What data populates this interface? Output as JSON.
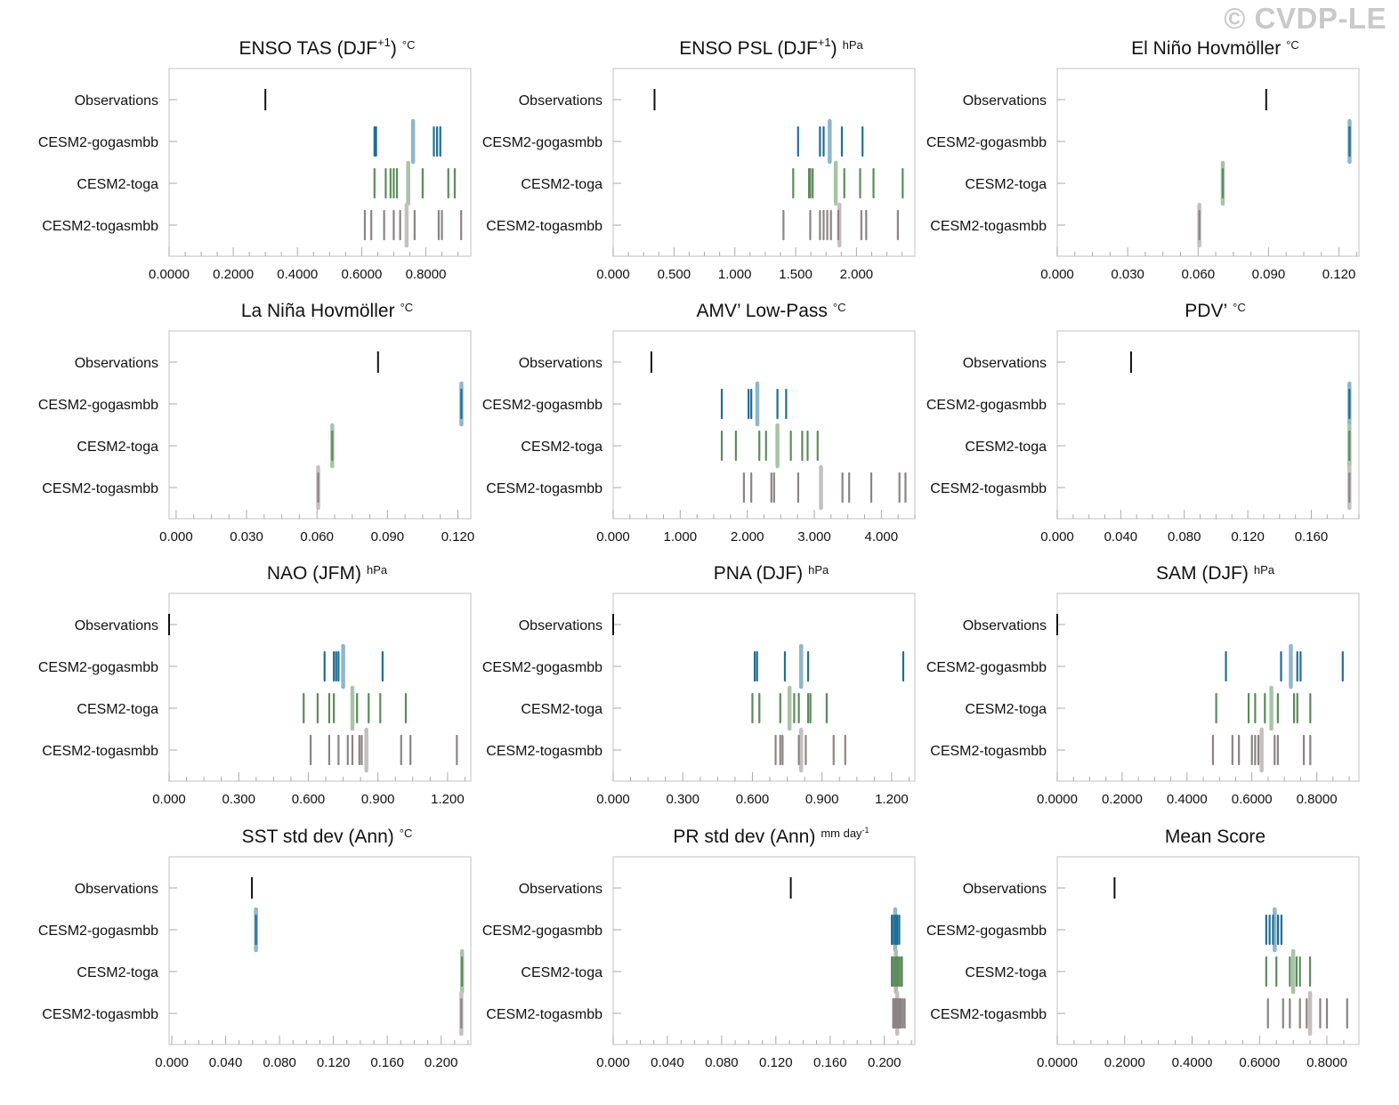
{
  "watermark": "© CVDP-LE",
  "row_labels": [
    "Observations",
    "CESM2-gogasmbb",
    "CESM2-toga",
    "CESM2-togasmbb"
  ],
  "colors": {
    "obs": "#111111",
    "gogasmbb": "#1f6e94",
    "gogasmbb_mean": "#8fb6cc",
    "toga": "#5e8a5e",
    "toga_mean": "#a8c4a8",
    "togasmbb": "#8a8484",
    "togasmbb_mean": "#c4c0c0",
    "frame": "#cccccc",
    "tick": "#aaaaaa"
  },
  "chart_data": [
    {
      "type": "scatter",
      "title": "ENSO TAS (DJF",
      "sup": "+1",
      "after": ")",
      "units": "°C",
      "xlim": [
        0.0,
        0.94
      ],
      "ticks": [
        0.0,
        0.2,
        0.4,
        0.6,
        0.8
      ],
      "tick_labels": [
        "0.0000",
        "0.2000",
        "0.4000",
        "0.6000",
        "0.8000"
      ],
      "obs": 0.3,
      "gogasmbb": {
        "members": [
          0.64,
          0.645,
          0.825,
          0.835,
          0.845
        ],
        "mean": 0.76
      },
      "toga": {
        "members": [
          0.64,
          0.675,
          0.69,
          0.7,
          0.71,
          0.79,
          0.87,
          0.89
        ],
        "mean": 0.745
      },
      "togasmbb": {
        "members": [
          0.61,
          0.63,
          0.67,
          0.7,
          0.72,
          0.765,
          0.84,
          0.85,
          0.91
        ],
        "mean": 0.74
      }
    },
    {
      "type": "scatter",
      "title": "ENSO PSL (DJF",
      "sup": "+1",
      "after": ")",
      "units": "hPa",
      "xlim": [
        0.0,
        2.48
      ],
      "ticks": [
        0.0,
        0.5,
        1.0,
        1.5,
        2.0
      ],
      "tick_labels": [
        "0.000",
        "0.500",
        "1.000",
        "1.500",
        "2.000"
      ],
      "obs": 0.34,
      "gogasmbb": {
        "members": [
          1.52,
          1.7,
          1.73,
          1.88,
          2.05
        ],
        "mean": 1.78
      },
      "toga": {
        "members": [
          1.48,
          1.61,
          1.62,
          1.64,
          1.9,
          2.03,
          2.14,
          2.38
        ],
        "mean": 1.83
      },
      "togasmbb": {
        "members": [
          1.4,
          1.62,
          1.7,
          1.73,
          1.76,
          1.79,
          1.85,
          2.04,
          2.08,
          2.34
        ],
        "mean": 1.86
      }
    },
    {
      "type": "scatter",
      "title": "El Niño Hovmöller",
      "sup": "",
      "after": "",
      "units": "°C",
      "xlim": [
        0.0,
        0.1285
      ],
      "ticks": [
        0.0,
        0.03,
        0.06,
        0.09,
        0.12
      ],
      "tick_labels": [
        "0.000",
        "0.030",
        "0.060",
        "0.090",
        "0.120"
      ],
      "obs": 0.089,
      "gogasmbb": {
        "members": [
          0.1245
        ],
        "mean": 0.1245
      },
      "toga": {
        "members": [
          0.0705
        ],
        "mean": 0.0705
      },
      "togasmbb": {
        "members": [
          0.0605
        ],
        "mean": 0.0605
      }
    },
    {
      "type": "scatter",
      "title": "La Niña Hovmöller",
      "sup": "",
      "after": "",
      "units": "°C",
      "xlim": [
        -0.003,
        0.1255
      ],
      "ticks": [
        0.0,
        0.03,
        0.06,
        0.09,
        0.12
      ],
      "tick_labels": [
        "0.000",
        "0.030",
        "0.060",
        "0.090",
        "0.120"
      ],
      "obs": 0.086,
      "gogasmbb": {
        "members": [
          0.1215
        ],
        "mean": 0.1215
      },
      "toga": {
        "members": [
          0.0665
        ],
        "mean": 0.0665
      },
      "togasmbb": {
        "members": [
          0.0605
        ],
        "mean": 0.0605
      }
    },
    {
      "type": "scatter",
      "title": "AMV’ Low-Pass",
      "sup": "",
      "after": "",
      "units": "°C",
      "xlim": [
        0.0,
        4.5
      ],
      "ticks": [
        0.0,
        1.0,
        2.0,
        3.0,
        4.0
      ],
      "tick_labels": [
        "0.000",
        "1.000",
        "2.000",
        "3.000",
        "4.000"
      ],
      "obs": 0.57,
      "gogasmbb": {
        "members": [
          1.62,
          2.02,
          2.06,
          2.45,
          2.58
        ],
        "mean": 2.15
      },
      "toga": {
        "members": [
          1.62,
          1.83,
          2.18,
          2.28,
          2.65,
          2.82,
          2.9,
          3.05
        ],
        "mean": 2.45
      },
      "togasmbb": {
        "members": [
          1.95,
          2.06,
          2.36,
          2.4,
          2.76,
          3.42,
          3.52,
          3.85,
          4.27,
          4.36
        ],
        "mean": 3.1
      }
    },
    {
      "type": "scatter",
      "title": "PDV’",
      "sup": "",
      "after": "",
      "units": "°C",
      "xlim": [
        0.0,
        0.19
      ],
      "ticks": [
        0.0,
        0.04,
        0.08,
        0.12,
        0.16
      ],
      "tick_labels": [
        "0.000",
        "0.040",
        "0.080",
        "0.120",
        "0.160"
      ],
      "obs": 0.0465,
      "gogasmbb": {
        "members": [
          0.184
        ],
        "mean": 0.184
      },
      "toga": {
        "members": [
          0.184
        ],
        "mean": 0.184
      },
      "togasmbb": {
        "members": [
          0.184
        ],
        "mean": 0.184
      }
    },
    {
      "type": "scatter",
      "title": "NAO (JFM)",
      "sup": "",
      "after": "",
      "units": "hPa",
      "xlim": [
        0.0,
        1.3
      ],
      "ticks": [
        0.0,
        0.3,
        0.6,
        0.9,
        1.2
      ],
      "tick_labels": [
        "0.000",
        "0.300",
        "0.600",
        "0.900",
        "1.200"
      ],
      "obs": 0.0,
      "gogasmbb": {
        "members": [
          0.67,
          0.71,
          0.72,
          0.73,
          0.92
        ],
        "mean": 0.75
      },
      "toga": {
        "members": [
          0.58,
          0.64,
          0.69,
          0.71,
          0.81,
          0.86,
          0.91,
          1.02
        ],
        "mean": 0.79
      },
      "togasmbb": {
        "members": [
          0.61,
          0.69,
          0.73,
          0.77,
          0.79,
          0.82,
          0.83,
          1.0,
          1.04,
          1.24
        ],
        "mean": 0.85
      }
    },
    {
      "type": "scatter",
      "title": "PNA (DJF)",
      "sup": "",
      "after": "",
      "units": "hPa",
      "xlim": [
        0.0,
        1.3
      ],
      "ticks": [
        0.0,
        0.3,
        0.6,
        0.9,
        1.2
      ],
      "tick_labels": [
        "0.000",
        "0.300",
        "0.600",
        "0.900",
        "1.200"
      ],
      "obs": 0.0,
      "gogasmbb": {
        "members": [
          0.61,
          0.62,
          0.74,
          0.84,
          1.25
        ],
        "mean": 0.81
      },
      "toga": {
        "members": [
          0.6,
          0.63,
          0.72,
          0.78,
          0.8,
          0.84,
          0.85,
          0.92
        ],
        "mean": 0.76
      },
      "togasmbb": {
        "members": [
          0.7,
          0.72,
          0.73,
          0.8,
          0.83,
          0.95,
          1.0
        ],
        "mean": 0.81
      }
    },
    {
      "type": "scatter",
      "title": "SAM (DJF)",
      "sup": "",
      "after": "",
      "units": "hPa",
      "xlim": [
        0.0,
        0.93
      ],
      "ticks": [
        0.0,
        0.2,
        0.4,
        0.6,
        0.8
      ],
      "tick_labels": [
        "0.0000",
        "0.2000",
        "0.4000",
        "0.6000",
        "0.8000"
      ],
      "obs": 0.0,
      "gogasmbb": {
        "members": [
          0.52,
          0.69,
          0.74,
          0.75,
          0.88
        ],
        "mean": 0.72
      },
      "toga": {
        "members": [
          0.49,
          0.59,
          0.61,
          0.64,
          0.68,
          0.73,
          0.74,
          0.78
        ],
        "mean": 0.66
      },
      "togasmbb": {
        "members": [
          0.48,
          0.54,
          0.56,
          0.6,
          0.61,
          0.62,
          0.67,
          0.68,
          0.76,
          0.78
        ],
        "mean": 0.63
      }
    },
    {
      "type": "scatter",
      "title": "SST std dev (Ann)",
      "sup": "",
      "after": "",
      "units": "°C",
      "xlim": [
        -0.002,
        0.222
      ],
      "ticks": [
        0.0,
        0.04,
        0.08,
        0.12,
        0.16,
        0.2
      ],
      "tick_labels": [
        "0.000",
        "0.040",
        "0.080",
        "0.120",
        "0.160",
        "0.200"
      ],
      "obs": 0.0595,
      "gogasmbb": {
        "members": [
          0.0625
        ],
        "mean": 0.0625
      },
      "toga": {
        "members": [
          0.2155
        ],
        "mean": 0.2155
      },
      "togasmbb": {
        "members": [
          0.215
        ],
        "mean": 0.215
      }
    },
    {
      "type": "scatter",
      "title": "PR std dev (Ann)",
      "sup": "",
      "after": "",
      "units": "mm day",
      "units_sup": "-1",
      "xlim": [
        0.0,
        0.2225
      ],
      "ticks": [
        0.0,
        0.04,
        0.08,
        0.12,
        0.16,
        0.2
      ],
      "tick_labels": [
        "0.000",
        "0.040",
        "0.080",
        "0.120",
        "0.160",
        "0.200"
      ],
      "obs": 0.131,
      "gogasmbb": {
        "members": [
          0.2055,
          0.207,
          0.2085,
          0.2095,
          0.211
        ],
        "mean": 0.208
      },
      "toga": {
        "members": [
          0.2055,
          0.2065,
          0.208,
          0.209,
          0.21,
          0.211,
          0.2125,
          0.213
        ],
        "mean": 0.2085
      },
      "togasmbb": {
        "members": [
          0.2065,
          0.2075,
          0.208,
          0.209,
          0.2095,
          0.2105,
          0.2115,
          0.212,
          0.2135,
          0.215
        ],
        "mean": 0.2095
      }
    },
    {
      "type": "scatter",
      "title": "Mean Score",
      "sup": "",
      "after": "",
      "units": "",
      "xlim": [
        0.0,
        0.895
      ],
      "ticks": [
        0.0,
        0.2,
        0.4,
        0.6,
        0.8
      ],
      "tick_labels": [
        "0.0000",
        "0.2000",
        "0.4000",
        "0.6000",
        "0.8000"
      ],
      "obs": 0.17,
      "gogasmbb": {
        "members": [
          0.62,
          0.63,
          0.64,
          0.655,
          0.665
        ],
        "mean": 0.645
      },
      "toga": {
        "members": [
          0.62,
          0.65,
          0.69,
          0.71,
          0.72,
          0.75
        ],
        "mean": 0.7
      },
      "togasmbb": {
        "members": [
          0.625,
          0.67,
          0.69,
          0.72,
          0.74,
          0.78,
          0.8,
          0.86
        ],
        "mean": 0.75
      }
    }
  ]
}
